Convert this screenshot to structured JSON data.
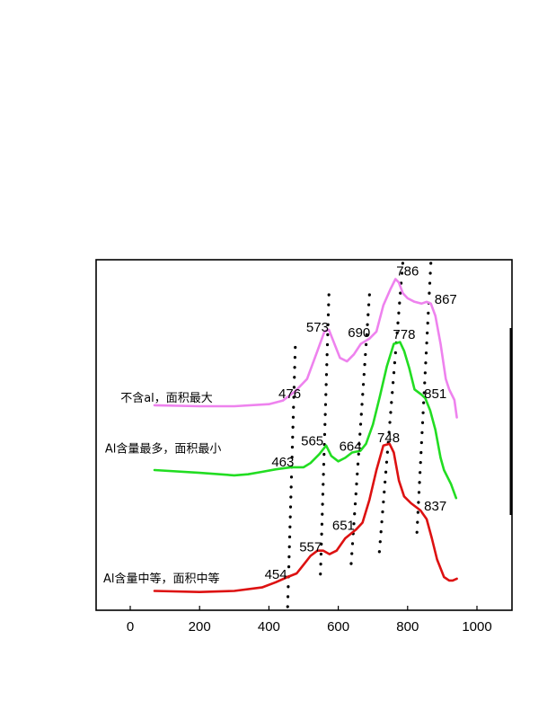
{
  "chart_data": {
    "type": "line",
    "title": "",
    "xlabel": "",
    "ylabel": "",
    "xlim": [
      -100,
      1100
    ],
    "ylim": [
      0,
      10
    ],
    "x_ticks": [
      0,
      200,
      400,
      600,
      800,
      1000
    ],
    "x_tick_labels": [
      "0",
      "200",
      "400",
      "600",
      "800",
      "1000"
    ],
    "grid": false,
    "legend": "none",
    "series": [
      {
        "label": "不含al，面积最大",
        "color": "#ee82ee",
        "points": [
          [
            70,
            5.85
          ],
          [
            200,
            5.82
          ],
          [
            300,
            5.82
          ],
          [
            400,
            5.88
          ],
          [
            440,
            5.98
          ],
          [
            476,
            6.25
          ],
          [
            510,
            6.6
          ],
          [
            540,
            7.4
          ],
          [
            560,
            7.95
          ],
          [
            573,
            8.0
          ],
          [
            585,
            7.7
          ],
          [
            605,
            7.2
          ],
          [
            625,
            7.1
          ],
          [
            645,
            7.3
          ],
          [
            665,
            7.6
          ],
          [
            690,
            7.75
          ],
          [
            710,
            7.95
          ],
          [
            730,
            8.7
          ],
          [
            750,
            9.15
          ],
          [
            765,
            9.45
          ],
          [
            775,
            9.35
          ],
          [
            786,
            9.05
          ],
          [
            800,
            8.9
          ],
          [
            820,
            8.8
          ],
          [
            840,
            8.75
          ],
          [
            855,
            8.8
          ],
          [
            867,
            8.75
          ],
          [
            880,
            8.4
          ],
          [
            895,
            7.6
          ],
          [
            910,
            6.6
          ],
          [
            920,
            6.3
          ],
          [
            935,
            6.0
          ],
          [
            942,
            5.5
          ]
        ]
      },
      {
        "label": "Al含量最多，面积最小",
        "color": "#22dd22",
        "points": [
          [
            70,
            4.0
          ],
          [
            200,
            3.92
          ],
          [
            300,
            3.85
          ],
          [
            340,
            3.88
          ],
          [
            380,
            3.95
          ],
          [
            420,
            4.02
          ],
          [
            463,
            4.08
          ],
          [
            500,
            4.08
          ],
          [
            520,
            4.2
          ],
          [
            545,
            4.45
          ],
          [
            565,
            4.7
          ],
          [
            580,
            4.4
          ],
          [
            600,
            4.25
          ],
          [
            620,
            4.35
          ],
          [
            640,
            4.5
          ],
          [
            664,
            4.55
          ],
          [
            680,
            4.75
          ],
          [
            700,
            5.3
          ],
          [
            720,
            6.1
          ],
          [
            740,
            6.95
          ],
          [
            760,
            7.6
          ],
          [
            778,
            7.65
          ],
          [
            790,
            7.4
          ],
          [
            805,
            6.9
          ],
          [
            820,
            6.3
          ],
          [
            840,
            6.15
          ],
          [
            851,
            6.05
          ],
          [
            865,
            5.7
          ],
          [
            880,
            5.15
          ],
          [
            895,
            4.35
          ],
          [
            905,
            4.0
          ],
          [
            925,
            3.6
          ],
          [
            940,
            3.2
          ]
        ]
      },
      {
        "label": "Al含量中等，面积中等",
        "color": "#dd1111",
        "points": [
          [
            70,
            0.55
          ],
          [
            200,
            0.52
          ],
          [
            300,
            0.55
          ],
          [
            380,
            0.65
          ],
          [
            420,
            0.8
          ],
          [
            454,
            0.95
          ],
          [
            480,
            1.05
          ],
          [
            500,
            1.3
          ],
          [
            520,
            1.55
          ],
          [
            540,
            1.7
          ],
          [
            557,
            1.7
          ],
          [
            575,
            1.6
          ],
          [
            595,
            1.7
          ],
          [
            620,
            2.05
          ],
          [
            651,
            2.3
          ],
          [
            670,
            2.5
          ],
          [
            690,
            3.15
          ],
          [
            710,
            4.0
          ],
          [
            730,
            4.7
          ],
          [
            748,
            4.75
          ],
          [
            760,
            4.5
          ],
          [
            775,
            3.7
          ],
          [
            790,
            3.25
          ],
          [
            810,
            3.05
          ],
          [
            837,
            2.85
          ],
          [
            855,
            2.6
          ],
          [
            870,
            2.05
          ],
          [
            885,
            1.45
          ],
          [
            905,
            0.95
          ],
          [
            920,
            0.85
          ],
          [
            930,
            0.85
          ],
          [
            942,
            0.9
          ]
        ]
      }
    ],
    "series_labels": [
      {
        "text": "不含al，面积最大",
        "x": 105,
        "y": 5.95
      },
      {
        "text": "Al含量最多，面积最小",
        "x": 95,
        "y": 4.5
      },
      {
        "text": "Al含量中等，面积中等",
        "x": 90,
        "y": 0.8
      }
    ],
    "peak_labels": [
      {
        "text": "476",
        "x": 460,
        "y": 6.05
      },
      {
        "text": "573",
        "x": 540,
        "y": 7.95
      },
      {
        "text": "690",
        "x": 660,
        "y": 7.8
      },
      {
        "text": "786",
        "x": 800,
        "y": 9.55
      },
      {
        "text": "867",
        "x": 910,
        "y": 8.75
      },
      {
        "text": "778",
        "x": 790,
        "y": 7.75
      },
      {
        "text": "851",
        "x": 880,
        "y": 6.05
      },
      {
        "text": "463",
        "x": 440,
        "y": 4.1
      },
      {
        "text": "565",
        "x": 525,
        "y": 4.7
      },
      {
        "text": "664",
        "x": 635,
        "y": 4.55
      },
      {
        "text": "748",
        "x": 745,
        "y": 4.8
      },
      {
        "text": "837",
        "x": 880,
        "y": 2.85
      },
      {
        "text": "557",
        "x": 520,
        "y": 1.68
      },
      {
        "text": "651",
        "x": 615,
        "y": 2.3
      },
      {
        "text": "454",
        "x": 420,
        "y": 0.9
      }
    ],
    "guide_lines": [
      {
        "from": [
          476,
          7.5
        ],
        "to": [
          454,
          0.1
        ]
      },
      {
        "from": [
          573,
          9.0
        ],
        "to": [
          548,
          0.85
        ]
      },
      {
        "from": [
          690,
          9.0
        ],
        "to": [
          637,
          1.3
        ]
      },
      {
        "from": [
          786,
          9.9
        ],
        "to": [
          718,
          1.6
        ]
      },
      {
        "from": [
          867,
          9.9
        ],
        "to": [
          826,
          2.05
        ]
      }
    ]
  }
}
